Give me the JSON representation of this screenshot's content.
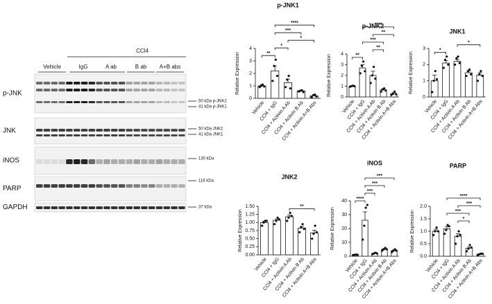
{
  "blot": {
    "group_label": "CCl4",
    "lanes": [
      "Vehicle",
      "IgG",
      "A  ab",
      "B ab",
      "A+B abs"
    ],
    "rows": [
      "p-JNK",
      "JNK",
      "iNOS",
      "PARP",
      "GAPDH"
    ],
    "markers": [
      "50 kDa p-JNK2",
      "41 kDa p-JNK1",
      "50 kDa JNK2",
      "41 kDa JNK1",
      "130 kDa",
      "116 kDa",
      "37 kDa"
    ]
  },
  "chart_data": [
    {
      "type": "bar",
      "title": "p-JNK1",
      "y_label": "Relative Expression",
      "categories": [
        "Vehicle",
        "CCl4 + IgG",
        "CCl4 + Activin A Ab",
        "CCl4 + Activin B Ab",
        "CCl4 + Activin A+B Abs"
      ],
      "values": [
        1.0,
        2.2,
        1.25,
        0.6,
        0.2
      ],
      "errors": [
        0.1,
        0.4,
        0.3,
        0.05,
        0.08
      ],
      "points": [
        [
          0.9,
          1.0,
          1.1,
          0.95
        ],
        [
          1.4,
          2.6,
          3.1,
          1.8
        ],
        [
          0.9,
          1.5,
          1.8,
          0.8
        ],
        [
          0.55,
          0.6,
          0.65,
          0.5
        ],
        [
          0.1,
          0.25,
          0.3,
          0.15
        ]
      ],
      "ylim": [
        0,
        4
      ],
      "yticks": [
        0,
        1,
        2,
        3,
        4
      ],
      "color": "#ffffff",
      "brackets": [
        {
          "from": 0,
          "to": 1,
          "label": "**"
        },
        {
          "from": 1,
          "to": 2,
          "label": "*"
        },
        {
          "from": 2,
          "to": 4,
          "label": "*"
        },
        {
          "from": 1,
          "to": 3,
          "label": "***"
        },
        {
          "from": 1,
          "to": 4,
          "label": "****"
        }
      ]
    },
    {
      "type": "bar",
      "title": "p-JNK2",
      "y_label": "Relative Expression",
      "categories": [
        "Vehicle",
        "CCl4 + IgG",
        "CCl4 + Activin A Ab",
        "CCl4 + Activin B Ab",
        "CCl4 + Activin A+B Abs"
      ],
      "values": [
        1.0,
        2.7,
        2.0,
        0.65,
        0.3
      ],
      "errors": [
        0.05,
        0.3,
        0.4,
        0.1,
        0.1
      ],
      "points": [
        [
          0.95,
          1.0,
          1.05,
          1.0
        ],
        [
          2.2,
          2.9,
          3.3,
          2.4
        ],
        [
          1.3,
          2.0,
          2.8,
          1.7
        ],
        [
          0.5,
          0.7,
          0.8,
          0.6
        ],
        [
          0.2,
          0.3,
          0.5,
          0.25
        ]
      ],
      "ylim": [
        0,
        4
      ],
      "yticks": [
        0,
        1,
        2,
        3,
        4
      ],
      "color": "#ffffff",
      "brackets": [
        {
          "from": 0,
          "to": 1,
          "label": "**"
        },
        {
          "from": 2,
          "to": 3,
          "label": "**"
        },
        {
          "from": 1,
          "to": 3,
          "label": "***"
        },
        {
          "from": 2,
          "to": 4,
          "label": "**"
        },
        {
          "from": 1,
          "to": 4,
          "label": "****"
        }
      ]
    },
    {
      "type": "bar",
      "title": "JNK1",
      "y_label": "Relative Expression",
      "categories": [
        "Vehicle",
        "CCl4 + IgG",
        "CCl4 + Activin A Ab",
        "CCl4 + Activin B Ab",
        "CCl4 + Activin A+B Abs"
      ],
      "values": [
        1.0,
        2.1,
        2.2,
        1.5,
        1.35
      ],
      "errors": [
        0.35,
        0.15,
        0.12,
        0.1,
        0.15
      ],
      "points": [
        [
          0.3,
          1.0,
          1.6,
          1.1
        ],
        [
          1.8,
          2.3,
          2.5,
          2.0
        ],
        [
          2.0,
          2.4,
          2.5,
          2.1
        ],
        [
          1.3,
          1.6,
          1.7,
          1.4
        ],
        [
          1.0,
          1.4,
          1.6,
          1.3
        ]
      ],
      "ylim": [
        0,
        3
      ],
      "yticks": [
        0,
        1,
        2,
        3
      ],
      "color": "#ffffff",
      "brackets": [
        {
          "from": 0,
          "to": 1,
          "label": "*"
        },
        {
          "from": 2,
          "to": 4,
          "label": "*"
        }
      ]
    },
    {
      "type": "bar",
      "title": "JNK2",
      "y_label": "Relative Expression",
      "categories": [
        "Vehicle",
        "CCl4 + IgG",
        "CCl4 + Activin A Ab",
        "CCl4 + Activin B Ab",
        "CCl4 + Activin A+B Abs"
      ],
      "values": [
        1.0,
        1.07,
        1.18,
        0.83,
        0.68
      ],
      "errors": [
        0.04,
        0.04,
        0.05,
        0.05,
        0.08
      ],
      "points": [
        [
          0.9,
          1.0,
          1.05,
          1.05
        ],
        [
          0.95,
          1.05,
          1.15,
          1.1
        ],
        [
          1.05,
          1.15,
          1.3,
          1.2
        ],
        [
          0.7,
          0.85,
          0.95,
          0.8
        ],
        [
          0.5,
          0.65,
          0.9,
          0.7
        ]
      ],
      "ylim": [
        0,
        1.5
      ],
      "yticks": [
        {
          "value": 0,
          "label": "0.00"
        },
        {
          "value": 0.25,
          "label": "0.25"
        },
        {
          "value": 0.5,
          "label": "0.50"
        },
        {
          "value": 0.75,
          "label": "0.75"
        },
        {
          "value": 1,
          "label": "1.00"
        },
        {
          "value": 1.25,
          "label": "1.25"
        },
        {
          "value": 1.5,
          "label": "1.50"
        }
      ],
      "color": "#ffffff",
      "brackets": [
        {
          "from": 2,
          "to": 4,
          "label": "**"
        }
      ]
    },
    {
      "type": "bar",
      "title": "iNOS",
      "y_label": "Relative Expression",
      "categories": [
        "Vehicle",
        "CCl4 + IgG",
        "CCl4 + Activin A Ab",
        "CCl4 + Activin B Ab",
        "CCl4 + Activin A+B Abs"
      ],
      "values": [
        1,
        26,
        2,
        5,
        4
      ],
      "errors": [
        0.2,
        6,
        0.3,
        0.5,
        0.5
      ],
      "points": [
        [
          0.8,
          1,
          1.2,
          1
        ],
        [
          12,
          22,
          35,
          37
        ],
        [
          1.5,
          2,
          2.5,
          2
        ],
        [
          4,
          5,
          6,
          5
        ],
        [
          3,
          4,
          5,
          4
        ]
      ],
      "ylim": [
        0,
        40
      ],
      "yticks": [
        0,
        10,
        20,
        30,
        40
      ],
      "color": "#ffffff",
      "brackets": [
        {
          "from": 0,
          "to": 1,
          "label": "****"
        },
        {
          "from": 1,
          "to": 2,
          "label": "***"
        },
        {
          "from": 1,
          "to": 3,
          "label": "***"
        },
        {
          "from": 1,
          "to": 4,
          "label": "***"
        }
      ]
    },
    {
      "type": "bar",
      "title": "PARP",
      "y_label": "Relative Expression",
      "categories": [
        "Vehicle",
        "CCl4 + IgG",
        "CCl4 + Activin A Ab",
        "CCl4 + Activin B Ab",
        "CCl4 + Activin A+B Abs"
      ],
      "values": [
        1.0,
        1.1,
        0.8,
        0.32,
        0.08
      ],
      "errors": [
        0.08,
        0.09,
        0.1,
        0.05,
        0.02
      ],
      "points": [
        [
          0.85,
          1.0,
          1.15,
          1.0
        ],
        [
          0.9,
          1.05,
          1.25,
          1.2
        ],
        [
          0.5,
          0.8,
          1.0,
          0.85
        ],
        [
          0.2,
          0.3,
          0.45,
          0.35
        ],
        [
          0.05,
          0.08,
          0.1,
          0.1
        ]
      ],
      "ylim": [
        0,
        2
      ],
      "yticks": [
        {
          "value": 0,
          "label": "0.0"
        },
        {
          "value": 0.5,
          "label": "0.5"
        },
        {
          "value": 1,
          "label": "1.0"
        },
        {
          "value": 1.5,
          "label": "1.5"
        },
        {
          "value": 2,
          "label": "2.0"
        }
      ],
      "color": "#ffffff",
      "brackets": [
        {
          "from": 2,
          "to": 3,
          "label": "*"
        },
        {
          "from": 1,
          "to": 3,
          "label": "***"
        },
        {
          "from": 2,
          "to": 4,
          "label": "***"
        },
        {
          "from": 1,
          "to": 4,
          "label": "****"
        }
      ]
    }
  ]
}
